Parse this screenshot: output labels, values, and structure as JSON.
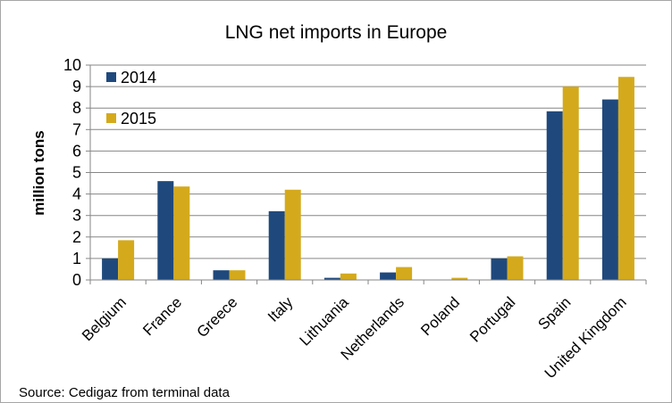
{
  "chart_data": {
    "type": "bar",
    "title": "LNG net imports in Europe",
    "xlabel": "",
    "ylabel": "million tons",
    "ylim": [
      0,
      10
    ],
    "yticks": [
      0,
      1,
      2,
      3,
      4,
      5,
      6,
      7,
      8,
      9,
      10
    ],
    "grid": true,
    "legend_position": "top-left",
    "categories": [
      "Belgium",
      "France",
      "Greece",
      "Italy",
      "Lithuania",
      "Netherlands",
      "Poland",
      "Portugal",
      "Spain",
      "United Kingdom"
    ],
    "series": [
      {
        "name": "2014",
        "color": "#1f497d",
        "values": [
          1.0,
          4.6,
          0.45,
          3.2,
          0.1,
          0.35,
          0.0,
          1.0,
          7.85,
          8.4
        ]
      },
      {
        "name": "2015",
        "color": "#d4aa1c",
        "values": [
          1.85,
          4.35,
          0.45,
          4.2,
          0.3,
          0.6,
          0.1,
          1.1,
          9.0,
          9.45
        ]
      }
    ],
    "source": "Source: Cedigaz from terminal data"
  }
}
